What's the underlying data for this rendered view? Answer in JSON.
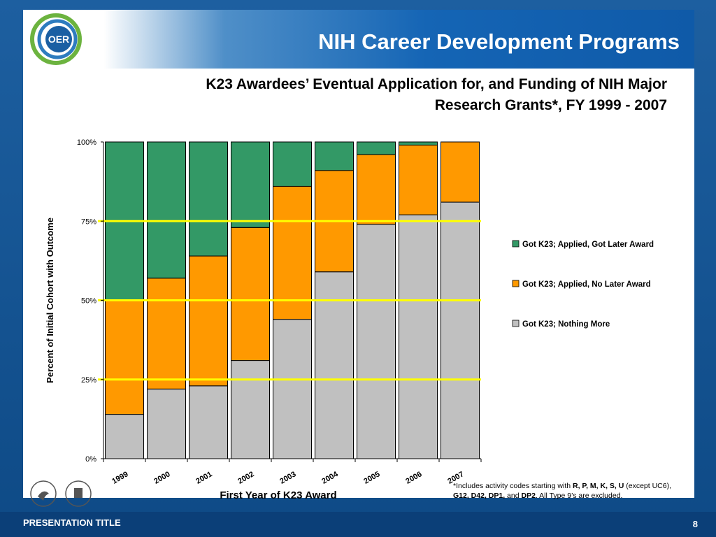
{
  "header": {
    "title": "NIH Career Development Programs",
    "logo_text": "OER"
  },
  "subtitle": {
    "line1": "K23 Awardees’ Eventual Application for, and Funding of NIH Major",
    "line2": "Research Grants*, FY 1999 - 2007"
  },
  "footnote": {
    "p1": "*Includes activity codes starting with ",
    "codes1": "R, P, M, K, S, U",
    "p2": " (except UC6), ",
    "codes2": "G12, D42, DP1,",
    "p3": " and ",
    "codes3": "DP2",
    "p4": ".  All Type 9’s are excluded."
  },
  "footer": {
    "presentation_title": "PRESENTATION TITLE",
    "page_number": "8"
  },
  "colors": {
    "nothing_more": "#c0c0c0",
    "applied_no_award": "#ff9900",
    "applied_got_award": "#339966",
    "reference_line": "#ffff00"
  },
  "chart_data": {
    "type": "bar",
    "stacked": true,
    "xlabel": "First Year of K23 Award",
    "ylabel": "Percent of Initial Cohort with Outcome",
    "ylim": [
      0,
      100
    ],
    "yticks": [
      "0%",
      "25%",
      "50%",
      "75%",
      "100%"
    ],
    "reference_lines": [
      25,
      50,
      75
    ],
    "legend_position": "right",
    "categories": [
      "1999",
      "2000",
      "2001",
      "2002",
      "2003",
      "2004",
      "2005",
      "2006",
      "2007"
    ],
    "series": [
      {
        "name": "Got K23; Nothing More",
        "color": "#c0c0c0",
        "values": [
          14,
          22,
          23,
          31,
          44,
          59,
          74,
          77,
          81
        ]
      },
      {
        "name": "Got K23; Applied,  No Later Award",
        "color": "#ff9900",
        "values": [
          36,
          35,
          41,
          42,
          42,
          32,
          22,
          22,
          19
        ]
      },
      {
        "name": "Got K23; Applied, Got Later Award",
        "color": "#339966",
        "values": [
          50,
          43,
          36,
          27,
          14,
          9,
          4,
          1,
          0
        ]
      }
    ]
  }
}
